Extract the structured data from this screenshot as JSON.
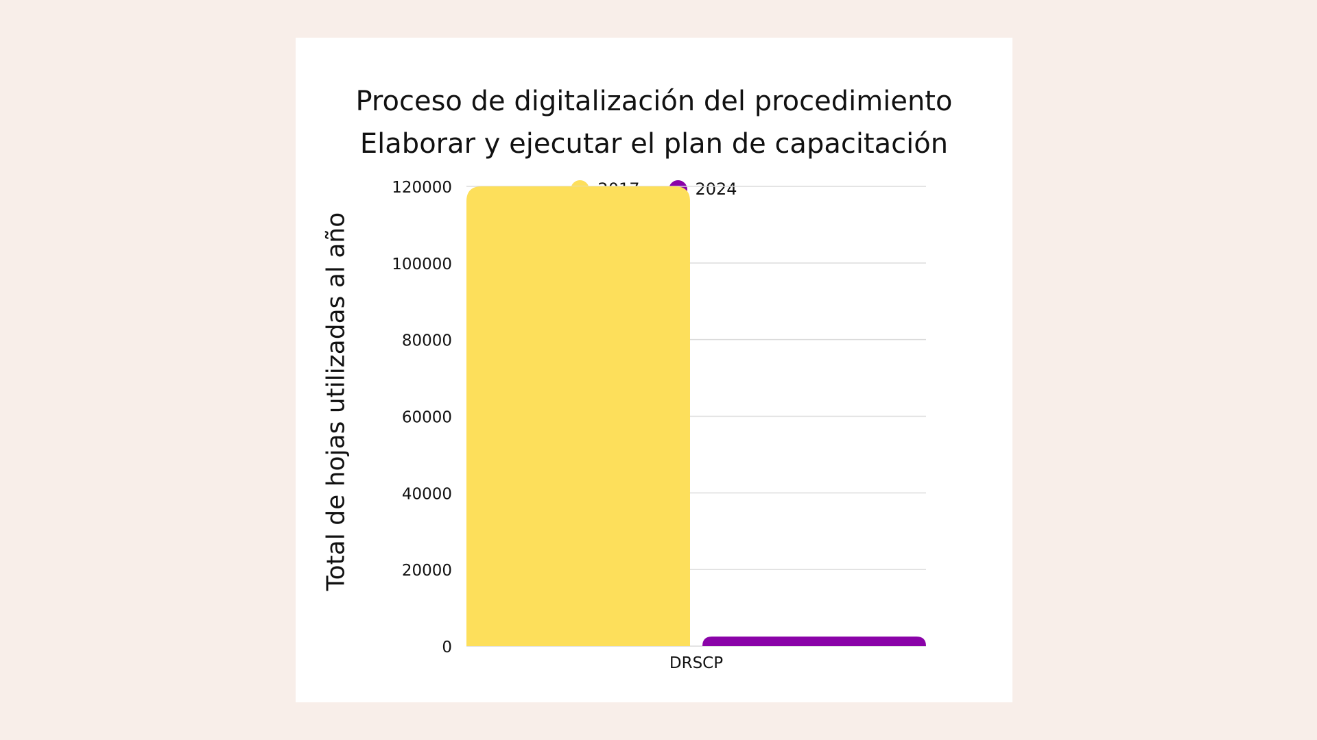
{
  "chart_data": {
    "type": "bar",
    "title": [
      "Proceso de digitalización del procedimiento",
      "Elaborar y ejecutar el plan de capacitación"
    ],
    "xlabel": "",
    "ylabel": "Total de hojas utilizadas al año",
    "categories": [
      "DRSCP"
    ],
    "series": [
      {
        "name": "2017",
        "values": [
          120000
        ],
        "color": "#fddf5b"
      },
      {
        "name": "2024",
        "values": [
          2500
        ],
        "color": "#8a03a8"
      }
    ],
    "ylim": [
      0,
      120000
    ],
    "yticks": [
      "0",
      "20000",
      "40000",
      "60000",
      "80000",
      "100000",
      "120000"
    ],
    "grid": true,
    "legend_position": "top-center"
  }
}
